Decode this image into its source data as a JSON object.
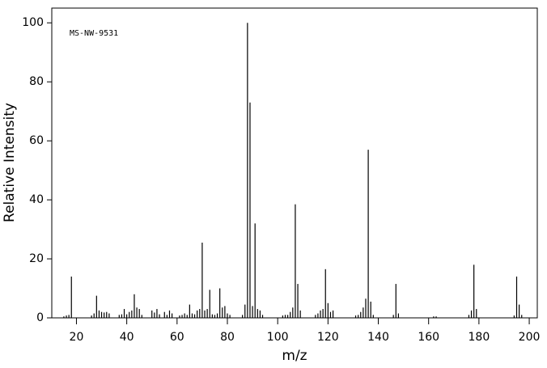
{
  "chart_data": {
    "type": "bar",
    "annotation": "MS-NW-9531",
    "x_label": "m/z",
    "y_label": "Relative Intensity",
    "color": "#000000",
    "xlim": [
      10.2,
      203.2
    ],
    "ylim": [
      0,
      105
    ],
    "xticks": [
      20,
      40,
      60,
      80,
      100,
      120,
      140,
      160,
      180,
      200
    ],
    "yticks": [
      0,
      20,
      40,
      60,
      80,
      100
    ],
    "x": [
      15,
      16,
      17,
      18,
      26,
      27,
      28,
      29,
      30,
      31,
      32,
      33,
      37,
      38,
      39,
      40,
      41,
      42,
      43,
      44,
      45,
      46,
      50,
      51,
      52,
      53,
      55,
      56,
      57,
      58,
      61,
      62,
      63,
      64,
      65,
      66,
      67,
      68,
      69,
      70,
      71,
      72,
      73,
      74,
      75,
      76,
      77,
      78,
      79,
      80,
      81,
      86,
      87,
      88,
      89,
      90,
      91,
      92,
      93,
      94,
      102,
      103,
      104,
      105,
      106,
      107,
      108,
      109,
      115,
      116,
      117,
      118,
      119,
      120,
      121,
      122,
      131,
      132,
      133,
      134,
      135,
      136,
      137,
      138,
      146,
      147,
      148,
      162,
      163,
      176,
      177,
      178,
      179,
      194,
      195,
      196,
      197
    ],
    "values": [
      0.5,
      0.8,
      1,
      14,
      0.8,
      1.5,
      7.5,
      2.5,
      2,
      1.8,
      2,
      1.5,
      1,
      1.2,
      3,
      1.2,
      2,
      2.5,
      8,
      3.5,
      3,
      1,
      2.5,
      1.8,
      3,
      1.2,
      2,
      1,
      2.5,
      1.5,
      0.8,
      1,
      1.5,
      1,
      4.5,
      1.5,
      1.2,
      2.5,
      3,
      25.5,
      2.5,
      3,
      9.5,
      1.2,
      1,
      1.5,
      10,
      3.5,
      4,
      1.5,
      1,
      1,
      4.5,
      100,
      73,
      4,
      32,
      3,
      2.5,
      1,
      0.8,
      1,
      1,
      2,
      3.5,
      38.5,
      11.5,
      2.5,
      1,
      1.5,
      2.5,
      3,
      16.5,
      5,
      2,
      2.5,
      0.8,
      1,
      2,
      3.5,
      6.5,
      57,
      5.5,
      1,
      1,
      11.5,
      1.5,
      0.5,
      0.5,
      1,
      2.5,
      18,
      3,
      0.8,
      14,
      4.5,
      1
    ]
  }
}
